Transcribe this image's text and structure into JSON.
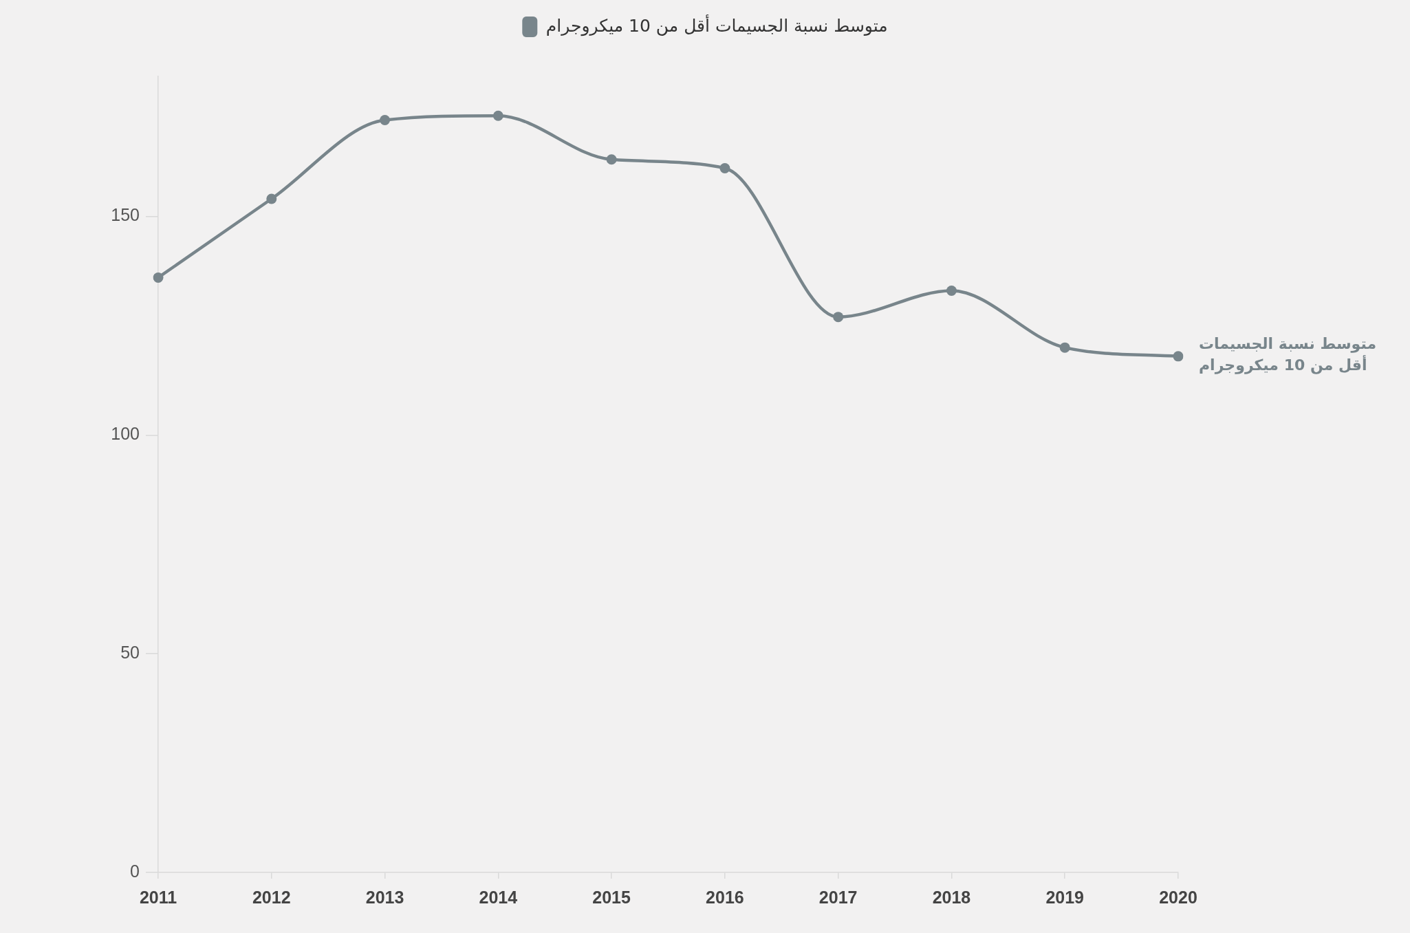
{
  "chart_data": {
    "type": "line",
    "categories": [
      "2011",
      "2012",
      "2013",
      "2014",
      "2015",
      "2016",
      "2017",
      "2018",
      "2019",
      "2020"
    ],
    "series": [
      {
        "name": "متوسط نسبة الجسيمات أقل من 10 ميكروجرام",
        "color": "#78858b",
        "values": [
          136,
          154,
          172,
          173,
          163,
          161,
          127,
          133,
          120,
          118
        ]
      }
    ],
    "ylim": [
      0,
      182
    ],
    "yticks": [
      0,
      50,
      100,
      150
    ],
    "grid": false,
    "legend": "top",
    "marker": "circle",
    "line_style": "solid"
  }
}
